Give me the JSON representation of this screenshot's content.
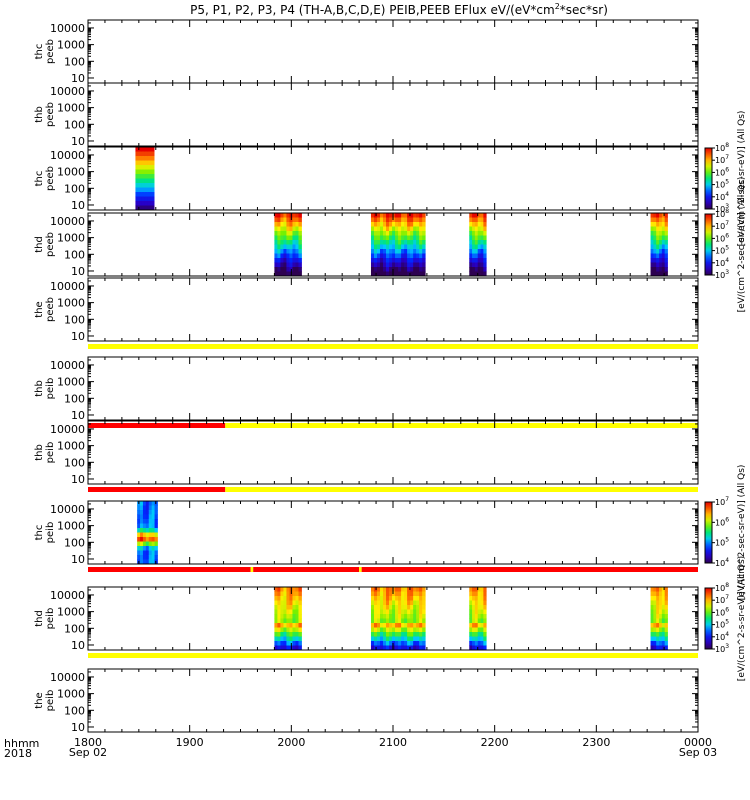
{
  "chart_data": {
    "type": "heatmap",
    "title": "P5, P1, P2, P3, P4 (TH-A,B,C,D,E) PEIB,PEEB EFlux eV/(eV*cm^2*sec*sr)",
    "title_parts": {
      "pre": "P5, P1, P2, P3, P4 (TH-A,B,C,D,E) PEIB,PEEB EFlux eV/(eV*cm",
      "sup": "2",
      "post": "*sec*sr)"
    },
    "x_axis": {
      "label_top": "hhmm",
      "label_bottom": "2018",
      "range_minutes": [
        1080,
        1440
      ],
      "ticks": [
        {
          "t": 1080,
          "label": "1800",
          "sub": "Sep 02"
        },
        {
          "t": 1140,
          "label": "1900",
          "sub": ""
        },
        {
          "t": 1200,
          "label": "2000",
          "sub": ""
        },
        {
          "t": 1260,
          "label": "2100",
          "sub": ""
        },
        {
          "t": 1320,
          "label": "2200",
          "sub": ""
        },
        {
          "t": 1380,
          "label": "2300",
          "sub": ""
        },
        {
          "t": 1440,
          "label": "0000",
          "sub": "Sep 03"
        }
      ]
    },
    "y_scale": "log",
    "y_range": [
      5,
      30000
    ],
    "y_ticks": [
      10,
      100,
      1000,
      10000
    ],
    "y_tick_labels": [
      "10",
      "100",
      "1000",
      "10000"
    ],
    "panels": [
      {
        "probe": "thc",
        "instrument": "peeb",
        "intervals": [],
        "colorbar": null,
        "status_after": null
      },
      {
        "probe": "thb",
        "instrument": "peeb",
        "intervals": [],
        "colorbar": null,
        "status_after": null
      },
      {
        "probe": "thc",
        "instrument": "peeb",
        "intervals": [
          {
            "start": 1108,
            "end": 1119,
            "style": "electron-strong"
          }
        ],
        "colorbar": {
          "exp_min": 3,
          "exp_max": 8,
          "label": "[eV/(cm^2-sec-sr-eV)] (All Qs)"
        },
        "status_after": null
      },
      {
        "probe": "thd",
        "instrument": "peeb",
        "intervals": [
          {
            "start": 1190,
            "end": 1206,
            "style": "electron"
          },
          {
            "start": 1247,
            "end": 1279,
            "style": "electron"
          },
          {
            "start": 1305,
            "end": 1315,
            "style": "electron"
          },
          {
            "start": 1412,
            "end": 1422,
            "style": "electron"
          }
        ],
        "colorbar": {
          "exp_min": 3,
          "exp_max": 8,
          "label": "[eV/(cm^2-sec-sr-eV)] (All Qs)"
        },
        "status_after": null
      },
      {
        "probe": "the",
        "instrument": "peeb",
        "intervals": [],
        "colorbar": null,
        "status_after": [
          {
            "start": 1080,
            "end": 1440,
            "color": "#ffff00"
          }
        ]
      },
      {
        "probe": "thb",
        "instrument": "peib",
        "intervals": [],
        "colorbar": null,
        "status_after": [
          {
            "start": 1080,
            "end": 1161,
            "color": "#ff0000"
          },
          {
            "start": 1161,
            "end": 1440,
            "color": "#ffff00"
          }
        ]
      },
      {
        "probe": "thb",
        "instrument": "peib",
        "intervals": [],
        "colorbar": null,
        "status_after": [
          {
            "start": 1080,
            "end": 1161,
            "color": "#ff0000"
          },
          {
            "start": 1161,
            "end": 1440,
            "color": "#ffff00"
          }
        ]
      },
      {
        "probe": "thc",
        "instrument": "peib",
        "intervals": [
          {
            "start": 1109,
            "end": 1121,
            "style": "ion-narrow"
          }
        ],
        "colorbar": {
          "exp_min": 4,
          "exp_max": 7,
          "label": "[eV/(cm^2-sec-sr-eV)] (All Qs)"
        },
        "status_after": [
          {
            "start": 1080,
            "end": 1176,
            "color": "#ff0000"
          },
          {
            "start": 1176,
            "end": 1177.5,
            "color": "#ffff00"
          },
          {
            "start": 1177.5,
            "end": 1240,
            "color": "#ff0000"
          },
          {
            "start": 1240,
            "end": 1241.5,
            "color": "#ffff00"
          },
          {
            "start": 1241.5,
            "end": 1440,
            "color": "#ff0000"
          }
        ]
      },
      {
        "probe": "thd",
        "instrument": "peib",
        "intervals": [
          {
            "start": 1190,
            "end": 1206,
            "style": "ion"
          },
          {
            "start": 1247,
            "end": 1279,
            "style": "ion"
          },
          {
            "start": 1305,
            "end": 1315,
            "style": "ion"
          },
          {
            "start": 1412,
            "end": 1422,
            "style": "ion"
          }
        ],
        "colorbar": {
          "exp_min": 3,
          "exp_max": 8,
          "label": "[eV/(cm^2-s-sr-eV)] (All Qs)"
        },
        "status_after": [
          {
            "start": 1080,
            "end": 1440,
            "color": "#ffff00"
          }
        ]
      },
      {
        "probe": "the",
        "instrument": "peib",
        "intervals": [],
        "colorbar": null,
        "status_after": null
      }
    ]
  }
}
